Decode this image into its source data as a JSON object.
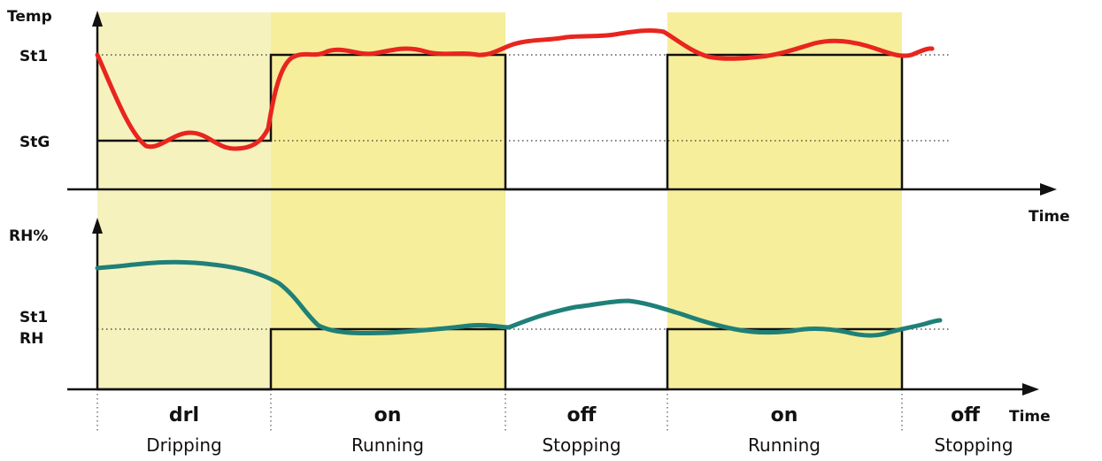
{
  "top_chart": {
    "y_axis_label": "Temp",
    "x_axis_label": "Time",
    "levels": {
      "upper": "St1",
      "lower": "StG"
    }
  },
  "bottom_chart": {
    "y_axis_label": "RH%",
    "x_axis_label": "Time",
    "level_label_line1": "St1",
    "level_label_line2": "RH"
  },
  "phases": [
    {
      "code": "drl",
      "name": "Dripping"
    },
    {
      "code": "on",
      "name": "Running"
    },
    {
      "code": "off",
      "name": "Stopping"
    },
    {
      "code": "on",
      "name": "Running"
    },
    {
      "code": "off",
      "name": "Stopping"
    }
  ],
  "colors": {
    "temp_curve": "#e8251e",
    "rh_curve": "#1f8078",
    "drip_shade": "#f6f2be",
    "run_shade": "#f6ee9a",
    "signal_line": "#111111"
  }
}
